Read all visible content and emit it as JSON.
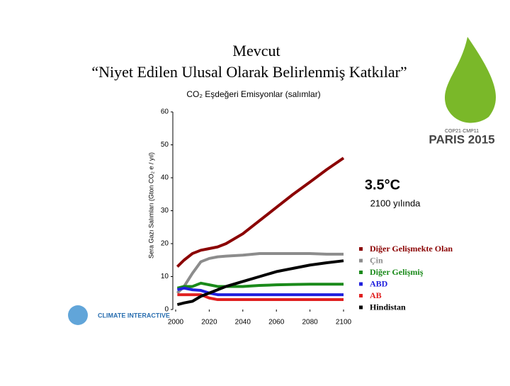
{
  "chart_data": {
    "type": "line",
    "title": "Mevcut",
    "subtitle": "“Niyet Edilen Ulusal Olarak Belirlenmiş Katkılar”",
    "chart_title": "CO₂ Eşdeğeri Emisyonlar (salımlar)",
    "ylabel": "Sera Gazı Salımları (Gton CO₂ e / yıl)",
    "annotations": [
      "3.5°C",
      "2100 yılında"
    ],
    "x": [
      2001,
      2005,
      2010,
      2015,
      2020,
      2025,
      2030,
      2040,
      2050,
      2060,
      2070,
      2080,
      2090,
      2100
    ],
    "series": [
      {
        "name": "Diğer Gelişmekte Olan",
        "color": "#8b0000",
        "values": [
          13,
          15,
          17,
          18,
          18.5,
          19,
          20,
          23,
          27,
          31,
          35,
          38.7,
          42.5,
          46
        ]
      },
      {
        "name": "Çin",
        "color": "#8c8c8c",
        "values": [
          5,
          7,
          11,
          14.5,
          15.5,
          16,
          16.2,
          16.5,
          17,
          17,
          17,
          17,
          16.8,
          16.8
        ]
      },
      {
        "name": "Diğer Gelişmiş",
        "color": "#1a8a1a",
        "values": [
          6.5,
          7,
          7,
          8,
          7.5,
          7,
          7,
          7,
          7.3,
          7.5,
          7.6,
          7.7,
          7.7,
          7.7
        ]
      },
      {
        "name": "ABD",
        "color": "#1f1fdd",
        "values": [
          6,
          6.5,
          6,
          5.8,
          5,
          4.5,
          4.5,
          4.5,
          4.5,
          4.5,
          4.5,
          4.5,
          4.5,
          4.5
        ]
      },
      {
        "name": "AB",
        "color": "#e02020",
        "values": [
          4.5,
          4.5,
          4.5,
          4.5,
          3.5,
          3,
          3,
          3,
          3,
          3,
          3,
          3,
          3,
          3
        ]
      },
      {
        "name": "Hindistan",
        "color": "#000000",
        "values": [
          1.5,
          2,
          2.5,
          4,
          5,
          6,
          7,
          8.5,
          10,
          11.5,
          12.5,
          13.5,
          14.2,
          14.8
        ]
      }
    ],
    "xlim": [
      2000,
      2100
    ],
    "xticks": [
      2000,
      2020,
      2040,
      2060,
      2080,
      2100
    ],
    "ylim": [
      0,
      60
    ],
    "yticks": [
      0,
      10,
      20,
      30,
      40,
      50,
      60
    ]
  },
  "logos": {
    "cop": "PARIS 2015",
    "cop_sub": "COP21·CMP11",
    "ci": "CLIMATE INTERACTIVE"
  }
}
